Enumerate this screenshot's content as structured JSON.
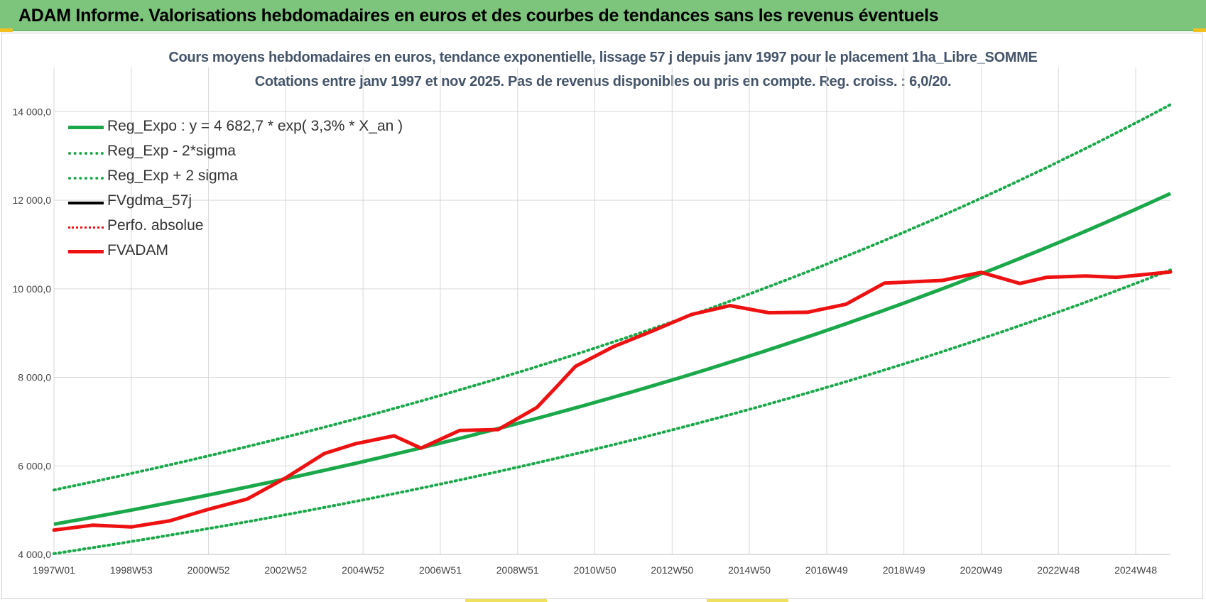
{
  "banner": {
    "title": "ADAM Informe. Valorisations hebdomadaires en euros et des courbes de tendances sans les revenus éventuels"
  },
  "colors": {
    "banner_bg": "#7dc57d",
    "reg_green": "#1aa84a",
    "fvadam_red": "#ee1111",
    "black": "#000000",
    "title_text": "#44546a",
    "grid": "#d9d9d9"
  },
  "chart_data": {
    "type": "line",
    "title": "Cours moyens hebdomadaires en euros, tendance exponentielle, lissage 57 j depuis janv 1997  pour le placement 1ha_Libre_SOMME",
    "subtitle": "Cotations entre janv 1997 et nov 2025. Pas de revenus disponibles ou pris en compte. Reg. croiss. : 6,0/20.",
    "xlabel": "",
    "ylabel": "",
    "x_range": [
      1997.0,
      2025.9
    ],
    "ylim": [
      4000,
      15000
    ],
    "y_ticks": [
      4000,
      6000,
      8000,
      10000,
      12000,
      14000
    ],
    "y_tick_labels": [
      "4 000,0",
      "6 000,0",
      "8 000,0",
      "10 000,0",
      "12 000,0",
      "14 000,0"
    ],
    "x_ticks": [
      1997.0,
      1999.0,
      2001.0,
      2003.0,
      2005.0,
      2007.0,
      2009.0,
      2011.0,
      2013.0,
      2015.0,
      2017.0,
      2019.0,
      2021.0,
      2023.0,
      2025.0
    ],
    "x_tick_labels": [
      "1997W01",
      "1998W53",
      "2000W52",
      "2002W52",
      "2004W52",
      "2006W51",
      "2008W51",
      "2010W50",
      "2012W50",
      "2014W50",
      "2016W49",
      "2018W49",
      "2020W49",
      "2022W48",
      "2024W48"
    ],
    "grid": true,
    "legend_position": "top-left",
    "regression": {
      "a": 4682.7,
      "rate": 0.033
    },
    "series": [
      {
        "name": "Reg_Expo : y = 4 682,7 * exp( 3,3% *  X_an )",
        "style": "solid-thick",
        "color": "#1aa84a",
        "x": [
          1997.0,
          2000.0,
          2003.0,
          2006.0,
          2009.0,
          2012.0,
          2015.0,
          2018.0,
          2021.0,
          2024.0,
          2025.9
        ],
        "values": [
          4683,
          5160,
          5687,
          6268,
          6908,
          7613,
          8390,
          9246,
          10190,
          11230,
          11960
        ]
      },
      {
        "name": "Reg_Exp - 2*sigma",
        "style": "dotted",
        "color": "#1aa84a",
        "x": [
          1997.0,
          2000.0,
          2003.0,
          2006.0,
          2009.0,
          2012.0,
          2015.0,
          2018.0,
          2021.0,
          2024.0,
          2025.9
        ],
        "values": [
          4018,
          4427,
          4879,
          5378,
          5927,
          6532,
          7199,
          7934,
          8743,
          9636,
          10260
        ]
      },
      {
        "name": "Reg_Exp + 2 sigma",
        "style": "dotted",
        "color": "#1aa84a",
        "x": [
          1997.0,
          2000.0,
          2003.0,
          2006.0,
          2009.0,
          2012.0,
          2015.0,
          2018.0,
          2021.0,
          2024.0,
          2025.9
        ],
        "values": [
          5457,
          6014,
          6628,
          7305,
          8051,
          8872,
          9778,
          10776,
          11876,
          13088,
          13940
        ]
      },
      {
        "name": "FVgdma_57j",
        "style": "solid-thin",
        "color": "#000000",
        "x": [
          1997.0,
          1998.0,
          1999.0,
          2000.0,
          2001.0,
          2002.0,
          2003.0,
          2004.0,
          2004.8,
          2005.8,
          2006.5,
          2007.5,
          2008.5,
          2009.5,
          2010.0,
          2010.5,
          2011.5,
          2012.5,
          2013.5,
          2014.5,
          2015.5,
          2016.5,
          2017.5,
          2018.5,
          2019.0,
          2020.0,
          2021.0,
          2022.0,
          2022.7,
          2023.7,
          2024.5,
          2025.9
        ],
        "values": [
          4550,
          4660,
          4620,
          4760,
          5020,
          5250,
          5730,
          6280,
          6500,
          6680,
          6400,
          6800,
          6820,
          7320,
          7780,
          8250,
          8700,
          9050,
          9420,
          9620,
          9460,
          9470,
          9650,
          10130,
          10150,
          10190,
          10370,
          10120,
          10260,
          10290,
          10260,
          10380
        ]
      },
      {
        "name": "Perfo. absolue",
        "style": "dotted",
        "color": "#ee1111",
        "x": [
          1997.0,
          1998.0,
          1999.0,
          2000.0,
          2001.0,
          2002.0,
          2003.0,
          2004.0,
          2004.8,
          2005.8,
          2006.5,
          2007.5,
          2008.5,
          2009.5,
          2010.0,
          2010.5,
          2011.5,
          2012.5,
          2013.5,
          2014.5,
          2015.5,
          2016.5,
          2017.5,
          2018.5,
          2019.0,
          2020.0,
          2021.0,
          2022.0,
          2022.7,
          2023.7,
          2024.5,
          2025.9
        ],
        "values": [
          4550,
          4660,
          4620,
          4760,
          5020,
          5250,
          5730,
          6280,
          6500,
          6680,
          6400,
          6800,
          6820,
          7320,
          7780,
          8250,
          8700,
          9050,
          9420,
          9620,
          9460,
          9470,
          9650,
          10130,
          10150,
          10190,
          10370,
          10120,
          10260,
          10290,
          10260,
          10380
        ]
      },
      {
        "name": "FVADAM",
        "style": "solid-thick",
        "color": "#ee1111",
        "x": [
          1997.0,
          1998.0,
          1999.0,
          2000.0,
          2001.0,
          2002.0,
          2003.0,
          2004.0,
          2004.8,
          2005.8,
          2006.5,
          2007.5,
          2008.5,
          2009.5,
          2010.0,
          2010.5,
          2011.5,
          2012.5,
          2013.5,
          2014.5,
          2015.5,
          2016.5,
          2017.5,
          2018.5,
          2019.0,
          2020.0,
          2021.0,
          2022.0,
          2022.7,
          2023.7,
          2024.5,
          2025.9
        ],
        "values": [
          4550,
          4660,
          4620,
          4760,
          5020,
          5250,
          5730,
          6280,
          6500,
          6680,
          6400,
          6800,
          6820,
          7320,
          7780,
          8250,
          8700,
          9050,
          9420,
          9620,
          9460,
          9470,
          9650,
          10130,
          10150,
          10190,
          10370,
          10120,
          10260,
          10290,
          10260,
          10380
        ]
      }
    ]
  }
}
